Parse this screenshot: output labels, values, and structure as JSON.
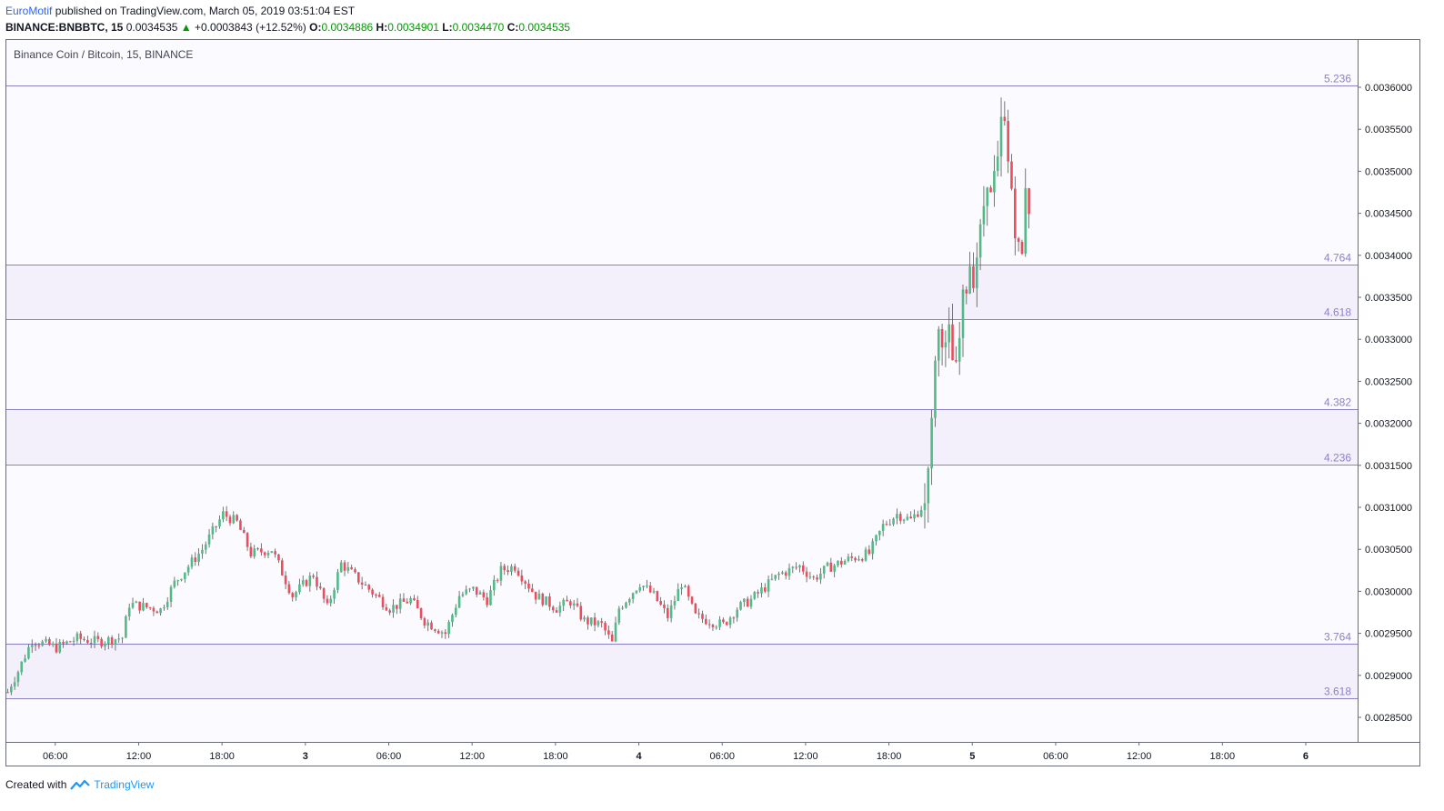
{
  "header": {
    "author": "EuroMotif",
    "published_text": "published on TradingView.com, March 05, 2019 03:51:04 EST",
    "symbol": "BINANCE:BNBBTC, 15",
    "last": "0.0034535",
    "change": "+0.0003843 (+12.52%)",
    "o_label": "O:",
    "o_value": "0.0034886",
    "h_label": "H:",
    "h_value": "0.0034901",
    "l_label": "L:",
    "l_value": "0.0034470",
    "c_label": "C:",
    "c_value": "0.0034535"
  },
  "footer": {
    "created_with": "Created with",
    "brand": "TradingView"
  },
  "colors": {
    "up": "#53b987",
    "down": "#eb4d5c",
    "fib_line": "#8b82c6",
    "fib_label": "#8b82c6",
    "band": "#f3f0fb",
    "background": "#fbfafe"
  },
  "chart_data": {
    "type": "candlestick",
    "title": "Binance Coin / Bitcoin, 15, BINANCE",
    "ylim": [
      0.002815,
      0.00366
    ],
    "y_ticks": [
      "0.0036000",
      "0.0035500",
      "0.0035000",
      "0.0034500",
      "0.0034000",
      "0.0033500",
      "0.0033000",
      "0.0032500",
      "0.0032000",
      "0.0031500",
      "0.0031000",
      "0.0030500",
      "0.0030000",
      "0.0029500",
      "0.0029000",
      "0.0028500"
    ],
    "x_ticks": [
      {
        "label": "06:00",
        "i": 4,
        "bold": false
      },
      {
        "label": "12:00",
        "i": 28,
        "bold": false
      },
      {
        "label": "18:00",
        "i": 52,
        "bold": false
      },
      {
        "label": "3",
        "i": 76,
        "bold": true
      },
      {
        "label": "06:00",
        "i": 100,
        "bold": false
      },
      {
        "label": "12:00",
        "i": 124,
        "bold": false
      },
      {
        "label": "18:00",
        "i": 148,
        "bold": false
      },
      {
        "label": "4",
        "i": 172,
        "bold": true
      },
      {
        "label": "06:00",
        "i": 196,
        "bold": false
      },
      {
        "label": "12:00",
        "i": 220,
        "bold": false
      },
      {
        "label": "18:00",
        "i": 244,
        "bold": false
      },
      {
        "label": "5",
        "i": 268,
        "bold": true
      },
      {
        "label": "06:00",
        "i": 292,
        "bold": false
      },
      {
        "label": "12:00",
        "i": 316,
        "bold": false
      },
      {
        "label": "18:00",
        "i": 340,
        "bold": false
      },
      {
        "label": "6",
        "i": 364,
        "bold": true
      }
    ],
    "fib_levels": [
      {
        "label": "5.236",
        "price": 0.003602
      },
      {
        "label": "4.764",
        "price": 0.003389
      },
      {
        "label": "4.618",
        "price": 0.003324
      },
      {
        "label": "4.382",
        "price": 0.003217
      },
      {
        "label": "4.236",
        "price": 0.003151
      },
      {
        "label": "3.764",
        "price": 0.002938
      },
      {
        "label": "3.618",
        "price": 0.002873
      }
    ],
    "anchors": [
      [
        0,
        0.00288
      ],
      [
        1,
        0.00289
      ],
      [
        3,
        0.002905
      ],
      [
        7,
        0.002942
      ],
      [
        14,
        0.002933
      ],
      [
        20,
        0.002944
      ],
      [
        26,
        0.00294
      ],
      [
        33,
        0.002945
      ],
      [
        35,
        0.002985
      ],
      [
        44,
        0.002978
      ],
      [
        48,
        0.00301
      ],
      [
        56,
        0.00305
      ],
      [
        62,
        0.003092
      ],
      [
        66,
        0.003082
      ],
      [
        70,
        0.003045
      ],
      [
        76,
        0.00305
      ],
      [
        82,
        0.002995
      ],
      [
        88,
        0.00302
      ],
      [
        92,
        0.00298
      ],
      [
        96,
        0.003033
      ],
      [
        102,
        0.00301
      ],
      [
        110,
        0.00298
      ],
      [
        116,
        0.00299
      ],
      [
        120,
        0.002965
      ],
      [
        126,
        0.00295
      ],
      [
        130,
        0.002995
      ],
      [
        134,
        0.003002
      ],
      [
        138,
        0.00299
      ],
      [
        142,
        0.003025
      ],
      [
        146,
        0.00303
      ],
      [
        152,
        0.002995
      ],
      [
        158,
        0.00298
      ],
      [
        162,
        0.002988
      ],
      [
        166,
        0.002965
      ],
      [
        171,
        0.00296
      ],
      [
        174,
        0.002938
      ],
      [
        176,
        0.00298
      ],
      [
        182,
        0.00301
      ],
      [
        186,
        0.002995
      ],
      [
        190,
        0.00297
      ],
      [
        194,
        0.00301
      ],
      [
        198,
        0.00297
      ],
      [
        206,
        0.00296
      ],
      [
        210,
        0.00298
      ],
      [
        214,
        0.00299
      ],
      [
        218,
        0.003005
      ],
      [
        222,
        0.00302
      ],
      [
        228,
        0.00303
      ],
      [
        232,
        0.003015
      ],
      [
        236,
        0.003028
      ],
      [
        242,
        0.003038
      ],
      [
        248,
        0.003045
      ],
      [
        252,
        0.003078
      ],
      [
        256,
        0.003092
      ],
      [
        260,
        0.003085
      ],
      [
        263,
        0.0031
      ],
      [
        264,
        0.003105
      ],
      [
        265,
        0.003155
      ],
      [
        266,
        0.0032
      ],
      [
        267,
        0.00328
      ],
      [
        268,
        0.00331
      ],
      [
        269,
        0.0033
      ],
      [
        270,
        0.00329
      ],
      [
        271,
        0.00331
      ],
      [
        272,
        0.003275
      ],
      [
        273,
        0.003265
      ],
      [
        274,
        0.0033
      ],
      [
        275,
        0.00335
      ],
      [
        276,
        0.00336
      ],
      [
        277,
        0.00339
      ],
      [
        278,
        0.00337
      ],
      [
        279,
        0.0034
      ],
      [
        280,
        0.00343
      ],
      [
        281,
        0.00346
      ],
      [
        282,
        0.00349
      ],
      [
        283,
        0.00347
      ],
      [
        284,
        0.003495
      ],
      [
        285,
        0.00351
      ],
      [
        286,
        0.00356
      ],
      [
        287,
        0.003555
      ],
      [
        288,
        0.00351
      ],
      [
        289,
        0.00348
      ],
      [
        290,
        0.00343
      ],
      [
        291,
        0.00341
      ],
      [
        292,
        0.0034
      ],
      [
        293,
        0.003485
      ],
      [
        294,
        0.003455
      ]
    ],
    "n_bars": 295,
    "rand_seed": 7
  }
}
